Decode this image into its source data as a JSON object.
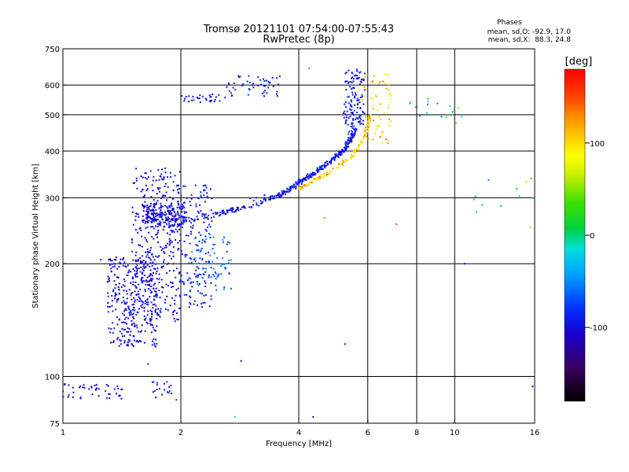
{
  "chart_data": {
    "type": "scatter",
    "title_line1": "Tromsø 20121101 07:54:00-07:55:43",
    "title_line2": "RwPretec (8p)",
    "phases_box": {
      "title": "Phases",
      "line1": "mean, sd,O: -92.9, 17.0",
      "line2": "mean, sd,X:  88.3, 24.8"
    },
    "xlabel": "Frequency [MHz]",
    "ylabel": "Stationary phase Virtual Height [km]",
    "xscale": "log",
    "yscale": "log",
    "xlim": [
      1,
      16
    ],
    "ylim": [
      75,
      750
    ],
    "xticks": [
      {
        "value": 1,
        "label": "1"
      },
      {
        "value": 2,
        "label": "2"
      },
      {
        "value": 4,
        "label": "4"
      },
      {
        "value": 6,
        "label": "6"
      },
      {
        "value": 8,
        "label": "8"
      },
      {
        "value": 10,
        "label": "10"
      },
      {
        "value": 16,
        "label": "16"
      }
    ],
    "yticks": [
      {
        "value": 75,
        "label": "75"
      },
      {
        "value": 100,
        "label": "100"
      },
      {
        "value": 200,
        "label": "200"
      },
      {
        "value": 300,
        "label": "300"
      },
      {
        "value": 400,
        "label": "400"
      },
      {
        "value": 500,
        "label": "500"
      },
      {
        "value": 600,
        "label": "600"
      },
      {
        "value": 750,
        "label": "750"
      }
    ],
    "grid_x": [
      2,
      4,
      6,
      8,
      10
    ],
    "grid_y": [
      100,
      200,
      300,
      400,
      500,
      600
    ],
    "colorbar": {
      "label": "[deg]",
      "range": [
        -180,
        180
      ],
      "ticks": [
        {
          "value": 100,
          "label": "100"
        },
        {
          "value": 0,
          "label": "0"
        },
        {
          "value": -100,
          "label": "-100"
        }
      ]
    },
    "clusters": [
      {
        "f": [
          0.95,
          1.0
        ],
        "h": [
          87,
          92
        ],
        "n": 40,
        "phase": [
          -110,
          -90
        ]
      },
      {
        "f": [
          1.0,
          1.45
        ],
        "h": [
          87,
          96
        ],
        "n": 45,
        "phase": [
          -115,
          -90
        ]
      },
      {
        "f": [
          1.3,
          1.75
        ],
        "h": [
          120,
          210
        ],
        "n": 330,
        "phase": [
          -115,
          -90
        ]
      },
      {
        "f": [
          1.5,
          2.0
        ],
        "h": [
          140,
          360
        ],
        "n": 360,
        "phase": [
          -115,
          -90
        ]
      },
      {
        "f": [
          1.6,
          2.05
        ],
        "h": [
          250,
          290
        ],
        "n": 200,
        "phase": [
          -115,
          -90
        ]
      },
      {
        "f": [
          2.0,
          2.4
        ],
        "h": [
          150,
          330
        ],
        "n": 150,
        "phase": [
          -105,
          -80
        ]
      },
      {
        "f": [
          2.1,
          2.7
        ],
        "h": [
          170,
          240
        ],
        "n": 70,
        "phase": [
          -80,
          -40
        ]
      },
      {
        "f": [
          1.65,
          1.95
        ],
        "h": [
          86,
          98
        ],
        "n": 20,
        "phase": [
          -105,
          -80
        ]
      },
      {
        "f": [
          2.6,
          3.6
        ],
        "h": [
          560,
          635
        ],
        "n": 50,
        "phase": [
          -105,
          -80
        ]
      },
      {
        "f": [
          2.0,
          2.6
        ],
        "h": [
          540,
          570
        ],
        "n": 30,
        "phase": [
          -105,
          -85
        ]
      },
      {
        "f": [
          5.2,
          5.9
        ],
        "h": [
          470,
          660
        ],
        "n": 120,
        "phase": [
          -105,
          -80
        ]
      },
      {
        "f": [
          5.8,
          6.9
        ],
        "h": [
          420,
          650
        ],
        "n": 60,
        "phase": [
          60,
          140
        ]
      },
      {
        "f": [
          7.5,
          10.5
        ],
        "h": [
          490,
          560
        ],
        "n": 18,
        "phase": [
          -60,
          60
        ]
      },
      {
        "f": [
          11,
          16
        ],
        "h": [
          260,
          340
        ],
        "n": 10,
        "phase": [
          -80,
          80
        ]
      }
    ],
    "traces": [
      {
        "f": [
          2.0,
          2.5,
          3.0,
          3.6,
          4.0,
          4.4,
          4.9,
          5.3,
          5.6
        ],
        "h": [
          260,
          272,
          285,
          305,
          330,
          350,
          380,
          410,
          460
        ],
        "n": 320,
        "spread": 8,
        "phase": [
          -110,
          -85
        ]
      },
      {
        "f": [
          4.0,
          4.5,
          5.0,
          5.5,
          5.9,
          6.1
        ],
        "h": [
          318,
          338,
          360,
          390,
          440,
          500
        ],
        "n": 130,
        "spread": 8,
        "phase": [
          70,
          140
        ]
      },
      {
        "f": [
          3.0,
          3.8,
          4.3,
          4.9,
          5.3,
          5.5
        ],
        "h": [
          295,
          315,
          345,
          380,
          420,
          470
        ],
        "n": 80,
        "spread": 9,
        "phase": [
          -100,
          -70
        ]
      }
    ],
    "isolated": [
      {
        "f": 1.25,
        "h": 205,
        "phase": -100
      },
      {
        "f": 1.65,
        "h": 108,
        "phase": -100
      },
      {
        "f": 2.85,
        "h": 110,
        "phase": -100
      },
      {
        "f": 4.35,
        "h": 78,
        "phase": -100
      },
      {
        "f": 5.25,
        "h": 122,
        "phase": -100
      },
      {
        "f": 15.8,
        "h": 94,
        "phase": -100
      },
      {
        "f": 10.6,
        "h": 200,
        "phase": -100
      },
      {
        "f": 4.65,
        "h": 265,
        "phase": 130
      },
      {
        "f": 7.1,
        "h": 255,
        "phase": 150
      },
      {
        "f": 4.25,
        "h": 665,
        "phase": 140
      },
      {
        "f": 2.75,
        "h": 78,
        "phase": -20
      },
      {
        "f": 11.2,
        "h": 297,
        "phase": 20
      },
      {
        "f": 15.6,
        "h": 250,
        "phase": 110
      },
      {
        "f": 10.1,
        "h": 475,
        "phase": 40
      }
    ]
  }
}
